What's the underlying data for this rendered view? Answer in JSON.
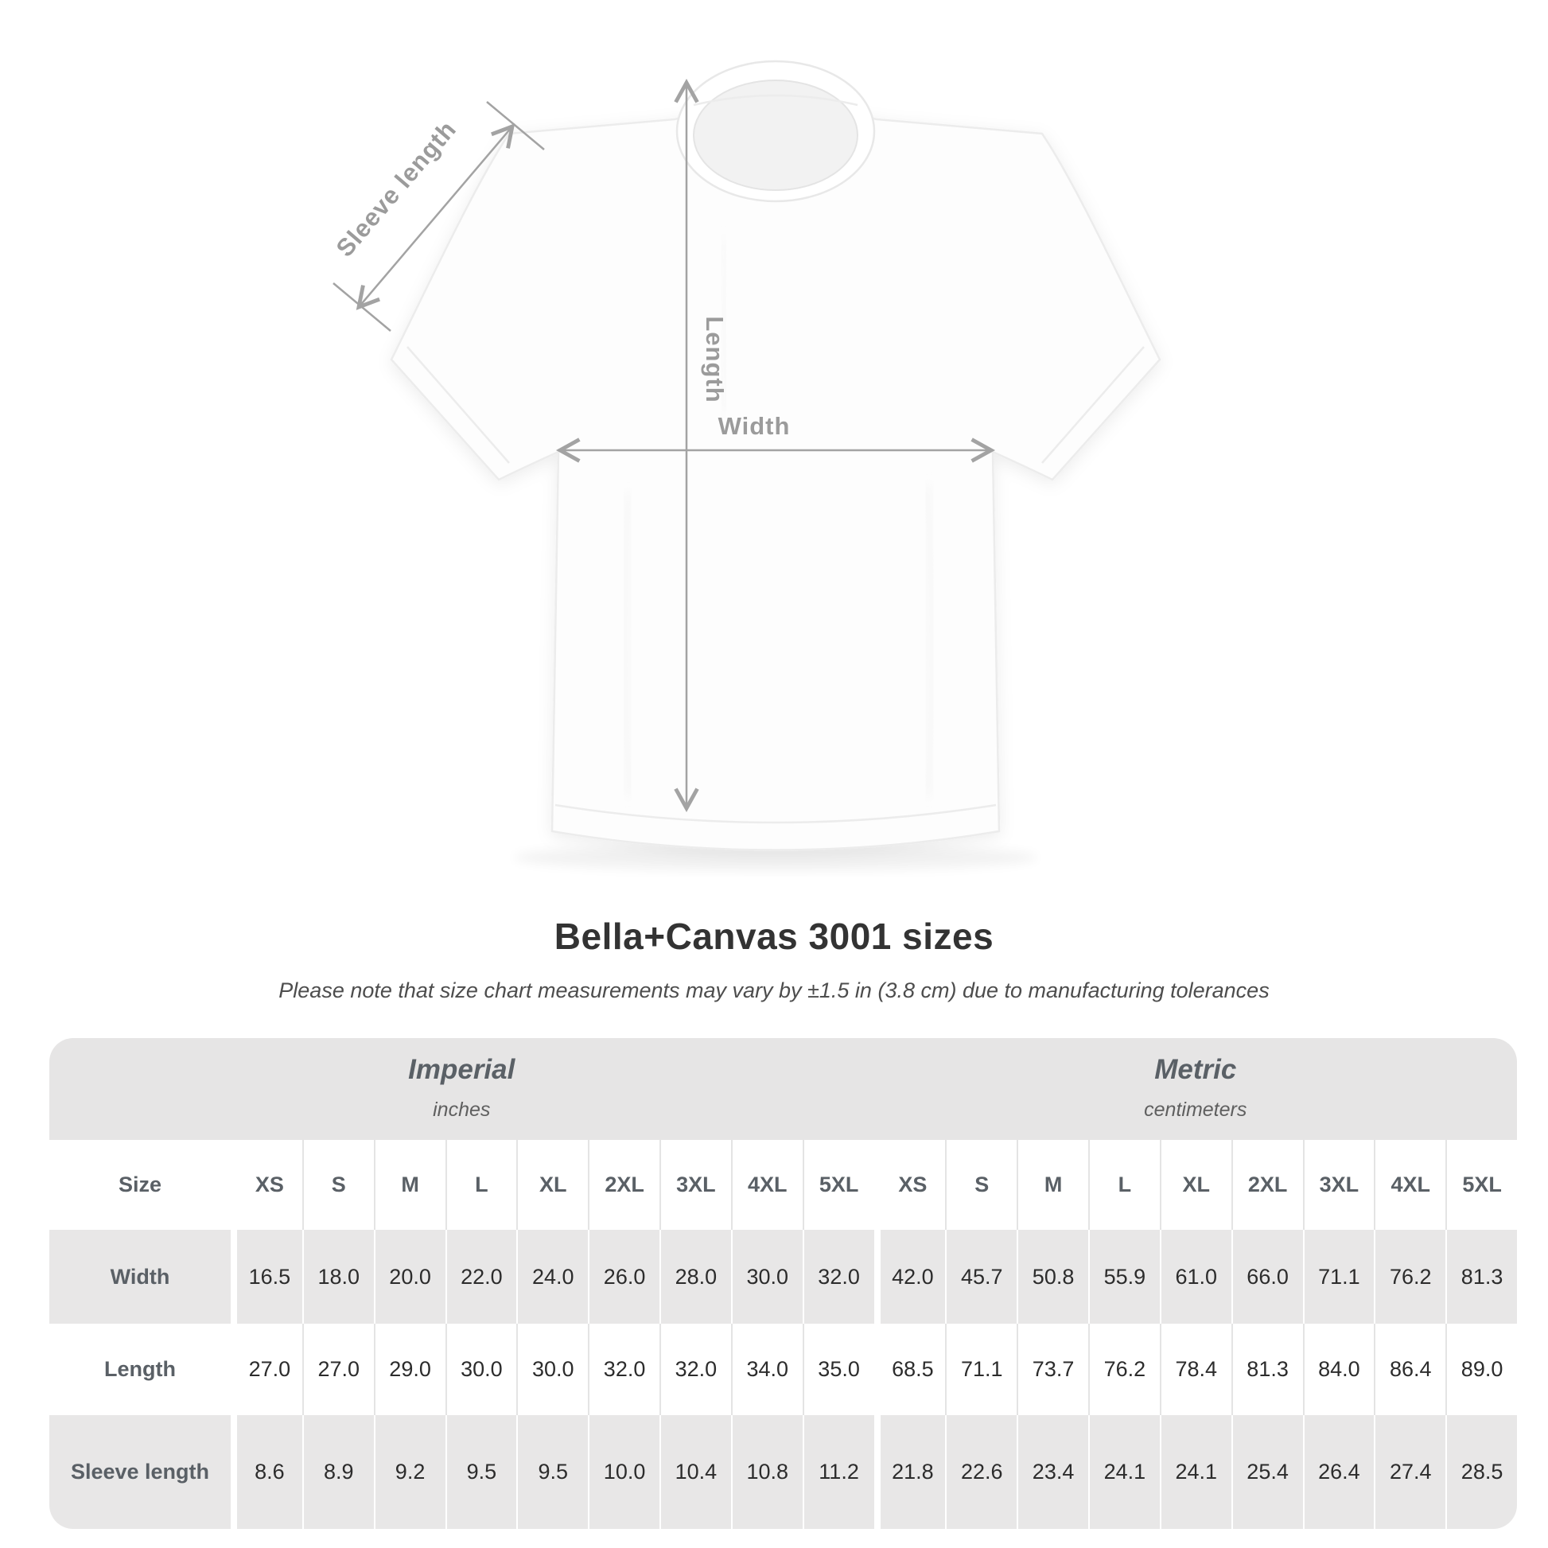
{
  "title": "Bella+Canvas 3001 sizes",
  "subtitle": "Please note that size chart measurements may vary by ±1.5 in (3.8 cm) due to manufacturing tolerances",
  "diagram": {
    "sleeve_length_label": "Sleeve length",
    "length_label": "Length",
    "width_label": "Width"
  },
  "table": {
    "sections": [
      {
        "label": "Imperial",
        "sublabel": "inches"
      },
      {
        "label": "Metric",
        "sublabel": "centimeters"
      }
    ],
    "size_label": "Size",
    "sizes": [
      "XS",
      "S",
      "M",
      "L",
      "XL",
      "2XL",
      "3XL",
      "4XL",
      "5XL"
    ],
    "rows": [
      {
        "label": "Width",
        "imperial": [
          "16.5",
          "18.0",
          "20.0",
          "22.0",
          "24.0",
          "26.0",
          "28.0",
          "30.0",
          "32.0"
        ],
        "metric": [
          "42.0",
          "45.7",
          "50.8",
          "55.9",
          "61.0",
          "66.0",
          "71.1",
          "76.2",
          "81.3"
        ]
      },
      {
        "label": "Length",
        "imperial": [
          "27.0",
          "27.0",
          "29.0",
          "30.0",
          "30.0",
          "32.0",
          "32.0",
          "34.0",
          "35.0"
        ],
        "metric": [
          "68.5",
          "71.1",
          "73.7",
          "76.2",
          "78.4",
          "81.3",
          "84.0",
          "86.4",
          "89.0"
        ]
      },
      {
        "label": "Sleeve length",
        "imperial": [
          "8.6",
          "8.9",
          "9.2",
          "9.5",
          "9.5",
          "10.0",
          "10.4",
          "10.8",
          "11.2"
        ],
        "metric": [
          "21.8",
          "22.6",
          "23.4",
          "24.1",
          "24.1",
          "25.4",
          "26.4",
          "27.4",
          "28.5"
        ]
      }
    ]
  },
  "colors": {
    "header_band_gray": "#e6e5e5",
    "row_band_gray": "#e8e7e7",
    "label_text": "#5a6066",
    "value_text": "#2c2c2c",
    "annotation_gray": "#9b9b9b",
    "title_text": "#333333"
  },
  "chart_data": {
    "type": "table",
    "title": "Bella+Canvas 3001 sizes",
    "note": "Please note that size chart measurements may vary by ±1.5 in (3.8 cm) due to manufacturing tolerances",
    "unit_groups": [
      {
        "name": "Imperial",
        "unit": "inches"
      },
      {
        "name": "Metric",
        "unit": "centimeters"
      }
    ],
    "columns": [
      "XS",
      "S",
      "M",
      "L",
      "XL",
      "2XL",
      "3XL",
      "4XL",
      "5XL"
    ],
    "rows": [
      {
        "measure": "Width",
        "imperial_in": [
          16.5,
          18.0,
          20.0,
          22.0,
          24.0,
          26.0,
          28.0,
          30.0,
          32.0
        ],
        "metric_cm": [
          42.0,
          45.7,
          50.8,
          55.9,
          61.0,
          66.0,
          71.1,
          76.2,
          81.3
        ]
      },
      {
        "measure": "Length",
        "imperial_in": [
          27.0,
          27.0,
          29.0,
          30.0,
          30.0,
          32.0,
          32.0,
          34.0,
          35.0
        ],
        "metric_cm": [
          68.5,
          71.1,
          73.7,
          76.2,
          78.4,
          81.3,
          84.0,
          86.4,
          89.0
        ]
      },
      {
        "measure": "Sleeve length",
        "imperial_in": [
          8.6,
          8.9,
          9.2,
          9.5,
          9.5,
          10.0,
          10.4,
          10.8,
          11.2
        ],
        "metric_cm": [
          21.8,
          22.6,
          23.4,
          24.1,
          24.1,
          25.4,
          26.4,
          27.4,
          28.5
        ]
      }
    ]
  }
}
